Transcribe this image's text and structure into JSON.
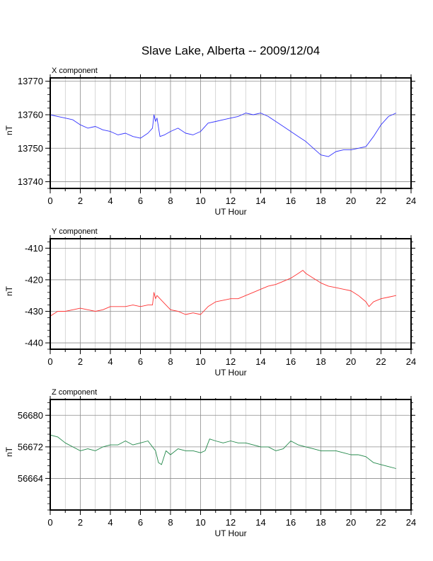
{
  "title": "Slave Lake, Alberta -- 2009/12/04",
  "chart_data": [
    {
      "type": "line",
      "panel_label": "X component",
      "xlabel": "UT Hour",
      "ylabel": "nT",
      "xlim": [
        0,
        24
      ],
      "ylim": [
        13738,
        13771
      ],
      "xticks": [
        0,
        2,
        4,
        6,
        8,
        10,
        12,
        14,
        16,
        18,
        20,
        22,
        24
      ],
      "yticks": [
        13740,
        13750,
        13760,
        13770
      ],
      "grid": true,
      "color": "#3333ff",
      "series": [
        {
          "x": [
            0,
            0.5,
            1,
            1.5,
            2,
            2.5,
            3,
            3.5,
            4,
            4.5,
            5,
            5.5,
            6,
            6.5,
            6.8,
            6.9,
            7.0,
            7.1,
            7.3,
            7.6,
            8,
            8.5,
            9,
            9.5,
            10,
            10.5,
            11,
            11.5,
            12,
            12.5,
            13,
            13.5,
            14,
            14.5,
            15,
            15.5,
            16,
            16.5,
            17,
            17.5,
            18,
            18.5,
            19,
            19.5,
            20,
            20.5,
            21,
            21.5,
            22,
            22.5,
            23
          ],
          "y": [
            13760,
            13759.5,
            13759,
            13758.5,
            13757,
            13756,
            13756.5,
            13755.5,
            13755,
            13754,
            13754.5,
            13753.5,
            13753,
            13754.5,
            13756,
            13760,
            13758,
            13759,
            13753.5,
            13754,
            13755,
            13756,
            13754.5,
            13754,
            13755,
            13757.5,
            13758,
            13758.5,
            13759,
            13759.5,
            13760.5,
            13760,
            13760.5,
            13759.5,
            13758,
            13756.5,
            13755,
            13753.5,
            13752,
            13750,
            13748,
            13747.5,
            13749,
            13749.5,
            13749.5,
            13750,
            13750.5,
            13753.5,
            13757,
            13759.5,
            13760.5
          ]
        }
      ]
    },
    {
      "type": "line",
      "panel_label": "Y component",
      "xlabel": "UT Hour",
      "ylabel": "nT",
      "xlim": [
        0,
        24
      ],
      "ylim": [
        -442,
        -407
      ],
      "xticks": [
        0,
        2,
        4,
        6,
        8,
        10,
        12,
        14,
        16,
        18,
        20,
        22,
        24
      ],
      "yticks": [
        -410,
        -420,
        -430,
        -440
      ],
      "grid": true,
      "color": "#ff3333",
      "series": [
        {
          "x": [
            0,
            0.5,
            1,
            1.5,
            2,
            2.5,
            3,
            3.5,
            4,
            4.5,
            5,
            5.5,
            6,
            6.5,
            6.8,
            6.9,
            7.0,
            7.1,
            7.3,
            7.6,
            8,
            8.5,
            9,
            9.5,
            10,
            10.5,
            11,
            11.5,
            12,
            12.5,
            13,
            13.5,
            14,
            14.5,
            15,
            15.5,
            16,
            16.5,
            16.8,
            17,
            17.5,
            18,
            18.5,
            19,
            19.5,
            20,
            20.5,
            21,
            21.2,
            21.5,
            22,
            22.5,
            23
          ],
          "y": [
            -431.5,
            -430,
            -430,
            -429.5,
            -429,
            -429.5,
            -430,
            -429.5,
            -428.5,
            -428.5,
            -428.5,
            -428,
            -428.5,
            -428,
            -428,
            -424,
            -426,
            -425,
            -426,
            -427.5,
            -429.5,
            -430,
            -431,
            -430.5,
            -431,
            -428.5,
            -427,
            -426.5,
            -426,
            -426,
            -425,
            -424,
            -423,
            -422,
            -421.5,
            -420.5,
            -419.5,
            -418,
            -417,
            -418,
            -419.5,
            -421,
            -422,
            -422.5,
            -423,
            -423.5,
            -425,
            -427,
            -428.5,
            -427,
            -426,
            -425.5,
            -425
          ]
        }
      ]
    },
    {
      "type": "line",
      "panel_label": "Z component",
      "xlabel": "UT Hour",
      "ylabel": "nT",
      "xlim": [
        0,
        24
      ],
      "ylim": [
        56656,
        56684
      ],
      "xticks": [
        0,
        2,
        4,
        6,
        8,
        10,
        12,
        14,
        16,
        18,
        20,
        22,
        24
      ],
      "yticks": [
        56664,
        56672,
        56680
      ],
      "grid": true,
      "color": "#22884a",
      "series": [
        {
          "x": [
            0,
            0.5,
            1,
            1.5,
            2,
            2.5,
            3,
            3.5,
            4,
            4.5,
            5,
            5.5,
            6,
            6.5,
            7.0,
            7.2,
            7.4,
            7.7,
            8,
            8.5,
            9,
            9.5,
            10,
            10.3,
            10.6,
            11,
            11.5,
            12,
            12.5,
            13,
            13.5,
            14,
            14.5,
            15,
            15.5,
            16,
            16.5,
            17,
            17.5,
            18,
            18.5,
            19,
            19.5,
            20,
            20.5,
            21,
            21.5,
            22,
            22.5,
            23
          ],
          "y": [
            56675,
            56674.5,
            56673,
            56672,
            56671,
            56671.5,
            56671,
            56672,
            56672.5,
            56672.5,
            56673.5,
            56672.5,
            56673,
            56673.5,
            56671,
            56668,
            56667.5,
            56671,
            56670,
            56671.5,
            56671,
            56671,
            56670.5,
            56671,
            56674,
            56673.5,
            56673,
            56673.5,
            56673,
            56673,
            56672.5,
            56672,
            56672,
            56671,
            56671.5,
            56673.5,
            56672.5,
            56672,
            56671.5,
            56671,
            56671,
            56671,
            56670.5,
            56670,
            56670,
            56669.5,
            56668,
            56667.5,
            56667,
            56666.5
          ]
        }
      ]
    }
  ]
}
